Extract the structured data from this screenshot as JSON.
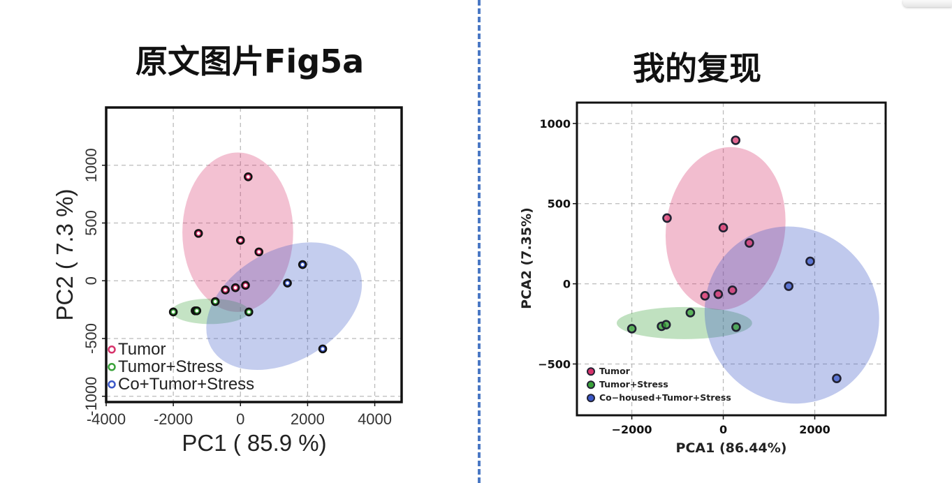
{
  "headings": {
    "left": "原文图片Fig5a",
    "right": "我的复现"
  },
  "colors": {
    "tumor": "#d7336b",
    "stress": "#3aa23a",
    "cohoused": "#3b58c8",
    "divider": "#4a78c4"
  },
  "chart_data": [
    {
      "type": "scatter",
      "xlabel": "PC1 ( 85.9 %)",
      "ylabel": "PC2 ( 7.3 %)",
      "xlim": [
        -4000,
        4800
      ],
      "ylim": [
        -1050,
        1500
      ],
      "xticks": [
        -4000,
        -2000,
        0,
        2000,
        4000
      ],
      "xtick_labels": [
        "-4000",
        "-2000",
        "0",
        "2000",
        "4000"
      ],
      "yticks": [
        -1000,
        -500,
        0,
        500,
        1000
      ],
      "ytick_labels": [
        "-1000",
        "-500",
        "0",
        "500",
        "1000"
      ],
      "grid": true,
      "legend": "bottom-left",
      "series": [
        {
          "name": "Tumor",
          "color": "#d7336b",
          "points": [
            [
              230,
              900
            ],
            [
              -1250,
              410
            ],
            [
              0,
              350
            ],
            [
              550,
              250
            ],
            [
              -450,
              -80
            ],
            [
              -150,
              -60
            ],
            [
              150,
              -40
            ]
          ],
          "ellipse": {
            "cx": -80,
            "cy": 420,
            "rx": 1650,
            "ry": 690,
            "angle_deg": 0
          }
        },
        {
          "name": "Tumor+Stress",
          "color": "#3aa23a",
          "points": [
            [
              -2000,
              -270
            ],
            [
              -1350,
              -260
            ],
            [
              -1300,
              -260
            ],
            [
              -750,
              -180
            ],
            [
              250,
              -270
            ]
          ],
          "ellipse": {
            "cx": -900,
            "cy": -265,
            "rx": 1150,
            "ry": 110,
            "angle_deg": 0
          }
        },
        {
          "name": "Co+Tumor+Stress",
          "color": "#3b58c8",
          "points": [
            [
              1850,
              140
            ],
            [
              1400,
              -20
            ],
            [
              2450,
              -590
            ]
          ],
          "ellipse": {
            "cx": 1300,
            "cy": -220,
            "rx": 2500,
            "ry": 480,
            "angle_deg": -30
          }
        }
      ]
    },
    {
      "type": "scatter",
      "xlabel": "PCA1 (86.44%)",
      "ylabel": "PCA2 (7.35%)",
      "xlim": [
        -3200,
        3550
      ],
      "ylim": [
        -820,
        1130
      ],
      "xticks": [
        -2000,
        0,
        2000
      ],
      "xtick_labels": [
        "−2000",
        "0",
        "2000"
      ],
      "yticks": [
        -500,
        0,
        500,
        1000
      ],
      "ytick_labels": [
        "−500",
        "0",
        "500",
        "1000"
      ],
      "grid": true,
      "legend": "bottom-left",
      "series": [
        {
          "name": "Tumor",
          "color": "#d7336b",
          "points": [
            [
              270,
              895
            ],
            [
              -1230,
              410
            ],
            [
              0,
              350
            ],
            [
              570,
              255
            ],
            [
              -400,
              -75
            ],
            [
              -110,
              -65
            ],
            [
              200,
              -40
            ]
          ],
          "ellipse": {
            "cx": 50,
            "cy": 345,
            "rx": 1300,
            "ry": 510,
            "angle_deg": 8
          }
        },
        {
          "name": "Tumor+Stress",
          "color": "#3aa23a",
          "points": [
            [
              -2000,
              -280
            ],
            [
              -1350,
              -265
            ],
            [
              -1250,
              -255
            ],
            [
              -720,
              -180
            ],
            [
              280,
              -270
            ]
          ],
          "ellipse": {
            "cx": -850,
            "cy": -245,
            "rx": 1480,
            "ry": 100,
            "angle_deg": 0
          }
        },
        {
          "name": "Co−housed+Tumor+Stress",
          "color": "#3b58c8",
          "points": [
            [
              1900,
              140
            ],
            [
              1430,
              -15
            ],
            [
              2480,
              -590
            ]
          ],
          "ellipse": {
            "cx": 1500,
            "cy": -195,
            "rx": 1880,
            "ry": 560,
            "angle_deg": -35
          }
        }
      ]
    }
  ]
}
